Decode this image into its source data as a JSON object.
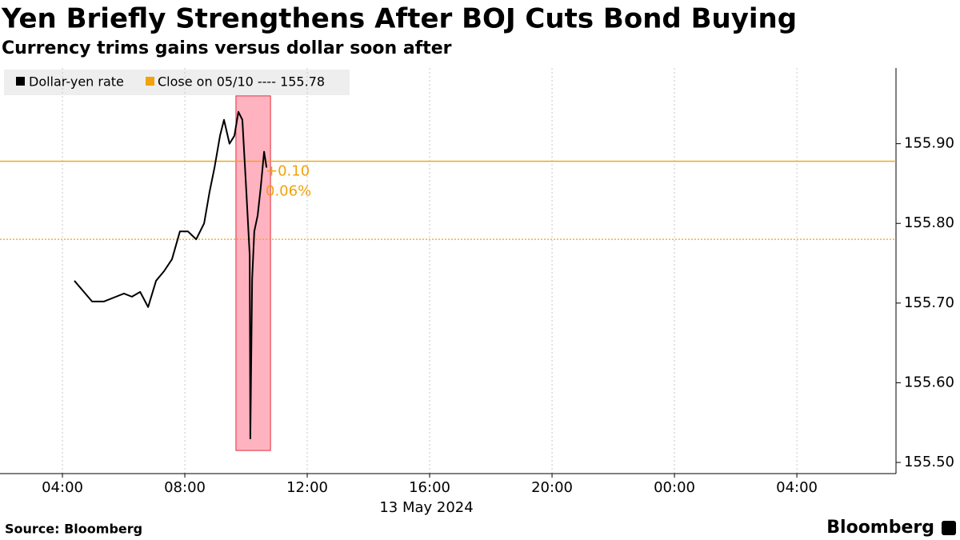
{
  "chart_data": {
    "type": "line",
    "title": "Yen Briefly Strengthens After BOJ Cuts Bond Buying",
    "subtitle": "Currency trims gains versus dollar soon after",
    "source": "Source: Bloomberg",
    "logo": "Bloomberg",
    "x_label": "13 May 2024",
    "x": [
      4.39,
      4.97,
      5.36,
      5.75,
      6.01,
      6.27,
      6.54,
      6.8,
      7.06,
      7.32,
      7.58,
      7.84,
      8.1,
      8.37,
      8.63,
      8.81,
      8.97,
      9.15,
      9.28,
      9.46,
      9.62,
      9.75,
      9.88,
      10.01,
      10.12,
      10.14,
      10.2,
      10.27,
      10.38,
      10.48,
      10.59,
      10.67
    ],
    "series": [
      {
        "name": "Dollar-yen rate",
        "color": "#000000",
        "values": [
          155.728,
          155.702,
          155.702,
          155.708,
          155.712,
          155.708,
          155.714,
          155.695,
          155.728,
          155.74,
          155.755,
          155.79,
          155.79,
          155.78,
          155.8,
          155.84,
          155.87,
          155.91,
          155.93,
          155.9,
          155.91,
          155.94,
          155.93,
          155.84,
          155.76,
          155.53,
          155.73,
          155.79,
          155.81,
          155.845,
          155.89,
          155.87
        ]
      }
    ],
    "reference_lines": [
      {
        "label": "Close on 05/10 ---- 155.78",
        "value": 155.78,
        "color": "#f0a30a",
        "style": "dotted"
      },
      {
        "value": 155.878,
        "color": "#f0a30a",
        "style": "solid"
      }
    ],
    "annotations": [
      "+0.10",
      "0.06%"
    ],
    "highlight": {
      "xlim": [
        9.67,
        10.8
      ],
      "ylim": [
        155.515,
        155.96
      ],
      "color": "#ffb3c0",
      "border": "#e0303a"
    },
    "xlim": [
      1.96,
      31.24
    ],
    "ylim": [
      155.486,
      155.995
    ],
    "xticks": [
      {
        "value": 4,
        "label": "04:00"
      },
      {
        "value": 8,
        "label": "08:00"
      },
      {
        "value": 12,
        "label": "12:00"
      },
      {
        "value": 16,
        "label": "16:00"
      },
      {
        "value": 20,
        "label": "20:00"
      },
      {
        "value": 24,
        "label": "00:00"
      },
      {
        "value": 28,
        "label": "04:00"
      }
    ],
    "yticks": [
      {
        "value": 155.5,
        "label": "155.50"
      },
      {
        "value": 155.6,
        "label": "155.60"
      },
      {
        "value": 155.7,
        "label": "155.70"
      },
      {
        "value": 155.8,
        "label": "155.80"
      },
      {
        "value": 155.9,
        "label": "155.90"
      }
    ],
    "grid": true
  }
}
